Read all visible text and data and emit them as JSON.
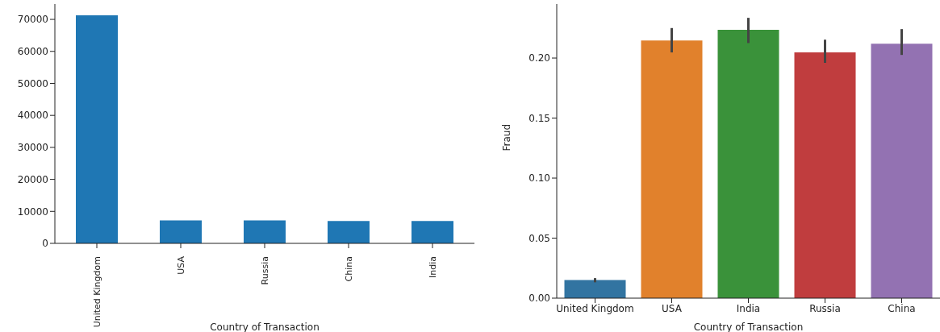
{
  "chart_data": [
    {
      "type": "bar",
      "xlabel": "Country of Transaction",
      "categories": [
        "United Kingdom",
        "USA",
        "Russia",
        "China",
        "India"
      ],
      "values": [
        71300,
        7200,
        7200,
        7000,
        7000
      ],
      "color": "#1f77b4",
      "ylim": [
        0,
        74800
      ],
      "yticks": [
        0,
        10000,
        20000,
        30000,
        40000,
        50000,
        60000,
        70000
      ],
      "grid": false,
      "legend": false
    },
    {
      "type": "bar",
      "xlabel": "Country of Transaction",
      "ylabel": "Fraud",
      "categories": [
        "United Kingdom",
        "USA",
        "India",
        "Russia",
        "China"
      ],
      "values": [
        0.0151,
        0.2146,
        0.2236,
        0.2047,
        0.212
      ],
      "colors": [
        "#3274a1",
        "#e1812c",
        "#3a923a",
        "#c03d3e",
        "#9372b2"
      ],
      "errors": [
        [
          0.0132,
          0.0167
        ],
        [
          0.2047,
          0.225
        ],
        [
          0.2125,
          0.2335
        ],
        [
          0.196,
          0.2153
        ],
        [
          0.2026,
          0.2241
        ]
      ],
      "ylim": [
        0,
        0.245
      ],
      "yticks": [
        {
          "value": 0,
          "label": "0.00"
        },
        {
          "value": 0.05,
          "label": "0.05"
        },
        {
          "value": 0.1,
          "label": "0.10"
        },
        {
          "value": 0.15,
          "label": "0.15"
        },
        {
          "value": 0.2,
          "label": "0.20"
        }
      ],
      "grid": false,
      "legend": false
    }
  ]
}
